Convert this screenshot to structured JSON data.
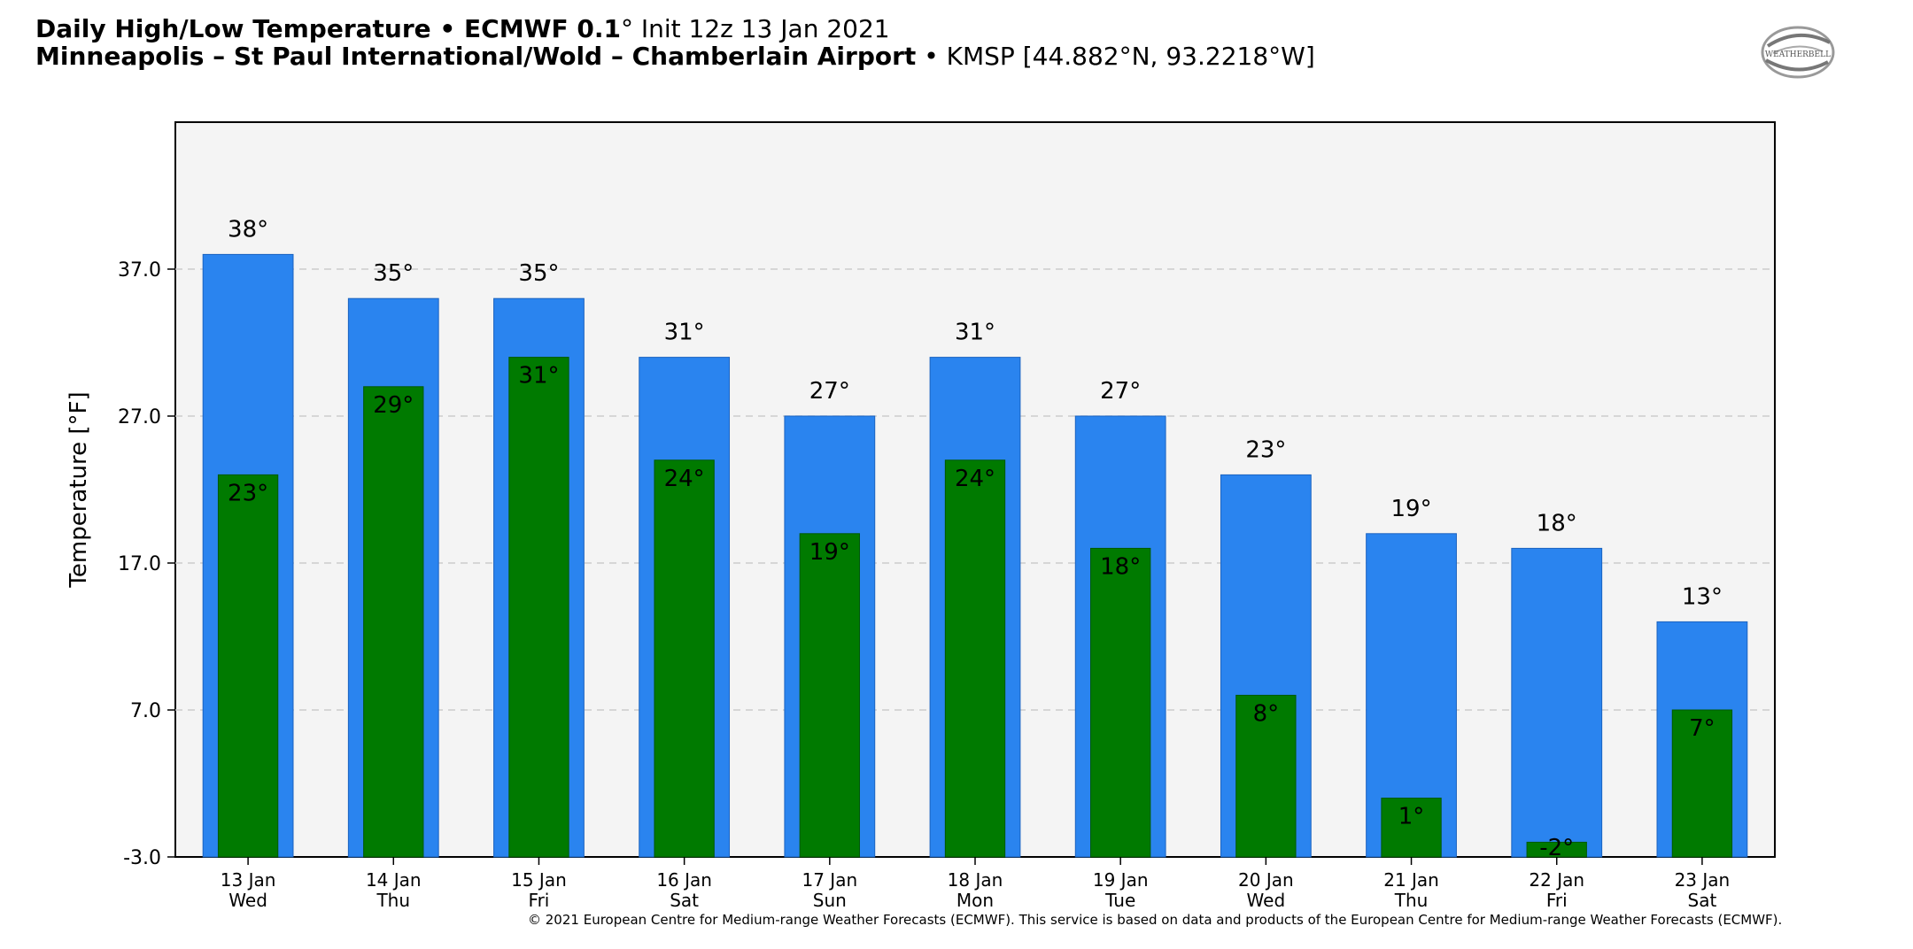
{
  "header": {
    "title_bold": "Daily High/Low Temperature • ECMWF 0.1",
    "title_degree": "°",
    "title_init": " Init 12z 13 Jan 2021",
    "location_bold": "Minneapolis – St Paul International/Wold – Chamberlain Airport",
    "location_rest": " • KMSP [44.882°N, 93.2218°W]"
  },
  "logo": {
    "text": "WEATHERBELL",
    "icon": "weatherbell-swirl-logo"
  },
  "footer": "© 2021 European Centre for Medium-range Weather Forecasts (ECMWF). This service is based on data and products of the European Centre for Medium-range Weather Forecasts (ECMWF).",
  "colors": {
    "high_bar": "#2a84ef",
    "low_bar": "#007a00",
    "plot_bg": "#f4f4f4"
  },
  "chart_data": {
    "type": "bar",
    "ylabel": "Temperature [°F]",
    "ylim": [
      -3,
      47
    ],
    "yticks": [
      -3.0,
      7.0,
      17.0,
      27.0,
      37.0
    ],
    "ytick_labels": [
      "-3.0",
      "7.0",
      "17.0",
      "27.0",
      "37.0"
    ],
    "grid": "horizontal dashed",
    "categories": [
      [
        "13 Jan",
        "Wed"
      ],
      [
        "14 Jan",
        "Thu"
      ],
      [
        "15 Jan",
        "Fri"
      ],
      [
        "16 Jan",
        "Sat"
      ],
      [
        "17 Jan",
        "Sun"
      ],
      [
        "18 Jan",
        "Mon"
      ],
      [
        "19 Jan",
        "Tue"
      ],
      [
        "20 Jan",
        "Wed"
      ],
      [
        "21 Jan",
        "Thu"
      ],
      [
        "22 Jan",
        "Fri"
      ],
      [
        "23 Jan",
        "Sat"
      ]
    ],
    "series": [
      {
        "values": [
          38,
          35,
          35,
          31,
          27,
          31,
          27,
          23,
          19,
          18,
          13
        ],
        "labels": [
          "38°",
          "35°",
          "35°",
          "31°",
          "27°",
          "31°",
          "27°",
          "23°",
          "19°",
          "18°",
          "13°"
        ]
      },
      {
        "values": [
          23,
          29,
          31,
          24,
          19,
          24,
          18,
          8,
          1,
          -2,
          7
        ],
        "labels": [
          "23°",
          "29°",
          "31°",
          "24°",
          "19°",
          "24°",
          "18°",
          "8°",
          "1°",
          "-2°",
          "7°"
        ]
      }
    ]
  }
}
